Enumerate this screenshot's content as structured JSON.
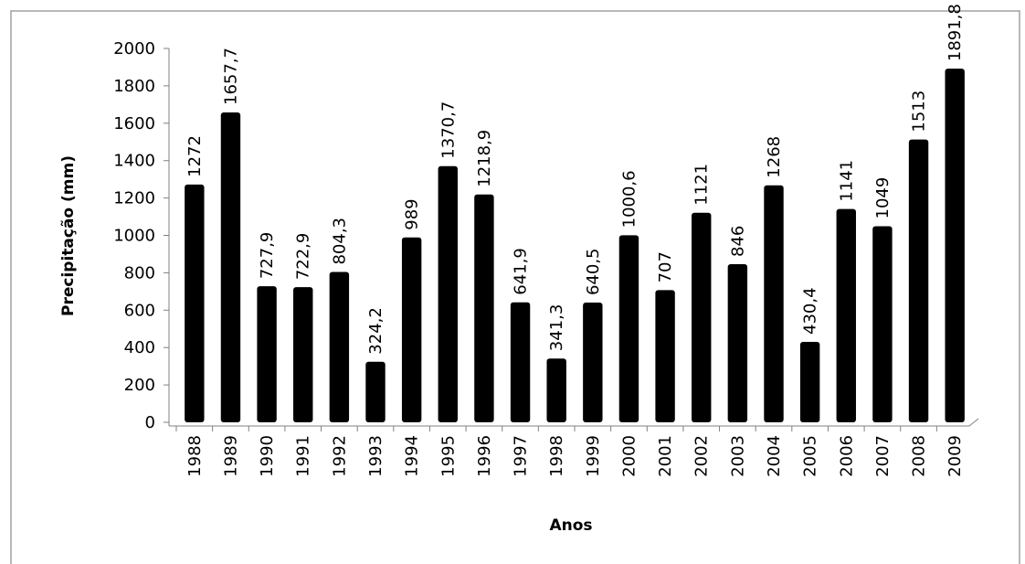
{
  "chart_data": {
    "type": "bar",
    "x_label": "Anos",
    "y_label": "Precipitação (mm)",
    "categories": [
      "1988",
      "1989",
      "1990",
      "1991",
      "1992",
      "1993",
      "1994",
      "1995",
      "1996",
      "1997",
      "1998",
      "1999",
      "2000",
      "2001",
      "2002",
      "2003",
      "2004",
      "2005",
      "2006",
      "2007",
      "2008",
      "2009"
    ],
    "values": [
      1272,
      1657.7,
      727.9,
      722.9,
      804.3,
      324.2,
      989,
      1370.7,
      1218.9,
      641.9,
      341.3,
      640.5,
      1000.6,
      707,
      1121,
      846,
      1268,
      430.4,
      1141,
      1049,
      1513,
      1891.8
    ],
    "value_labels": [
      "1272",
      "1657,7",
      "727,9",
      "722,9",
      "804,3",
      "324,2",
      "989",
      "1370,7",
      "1218,9",
      "641,9",
      "341,3",
      "640,5",
      "1000,6",
      "707",
      "1121",
      "846",
      "1268",
      "430,4",
      "1141",
      "1049",
      "1513",
      "1891,8"
    ],
    "color": "#000000",
    "ylim": [
      0,
      2000
    ],
    "yticks": [
      0,
      200,
      400,
      600,
      800,
      1000,
      1200,
      1400,
      1600,
      1800,
      2000
    ],
    "grid": false
  }
}
